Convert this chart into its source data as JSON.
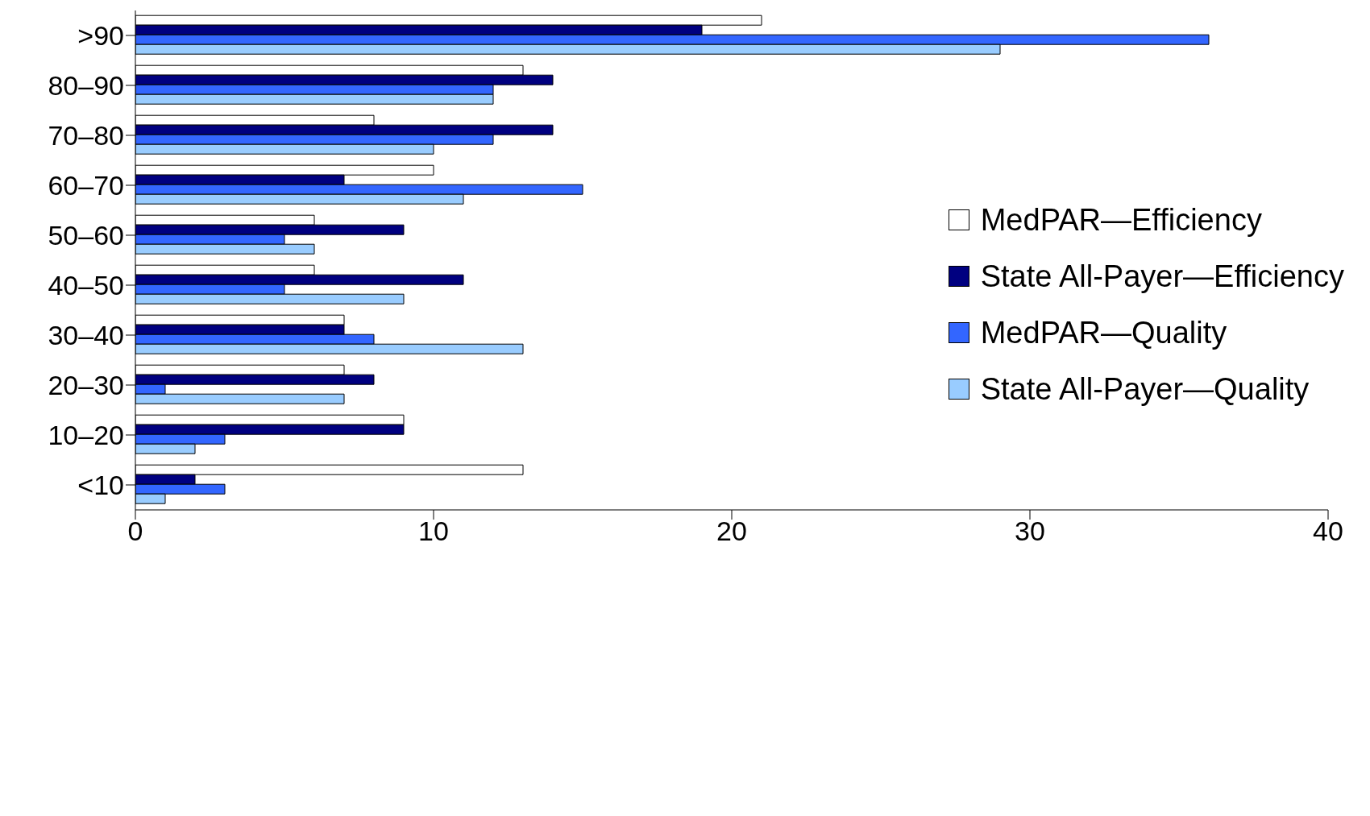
{
  "chart_data": {
    "type": "bar",
    "orientation": "horizontal",
    "categories": [
      ">90",
      "80–90",
      "70–80",
      "60–70",
      "50–60",
      "40–50",
      "30–40",
      "20–30",
      "10–20",
      "<10"
    ],
    "series": [
      {
        "name": "MedPAR—Efficiency",
        "color": "#ffffff",
        "values": [
          21,
          13,
          8,
          10,
          6,
          6,
          7,
          7,
          9,
          13
        ]
      },
      {
        "name": "State All-Payer—Efficiency",
        "color": "#000080",
        "values": [
          19,
          14,
          14,
          7,
          9,
          11,
          7,
          8,
          9,
          2
        ]
      },
      {
        "name": "MedPAR—Quality",
        "color": "#3366ff",
        "values": [
          36,
          12,
          12,
          15,
          5,
          5,
          8,
          1,
          3,
          3
        ]
      },
      {
        "name": "State All-Payer—Quality",
        "color": "#99ccff",
        "values": [
          29,
          12,
          10,
          11,
          6,
          9,
          13,
          7,
          2,
          1
        ]
      }
    ],
    "xlim": [
      0,
      40
    ],
    "xticks": [
      0,
      10,
      20,
      30,
      40
    ],
    "grid": false,
    "legend": "right"
  }
}
